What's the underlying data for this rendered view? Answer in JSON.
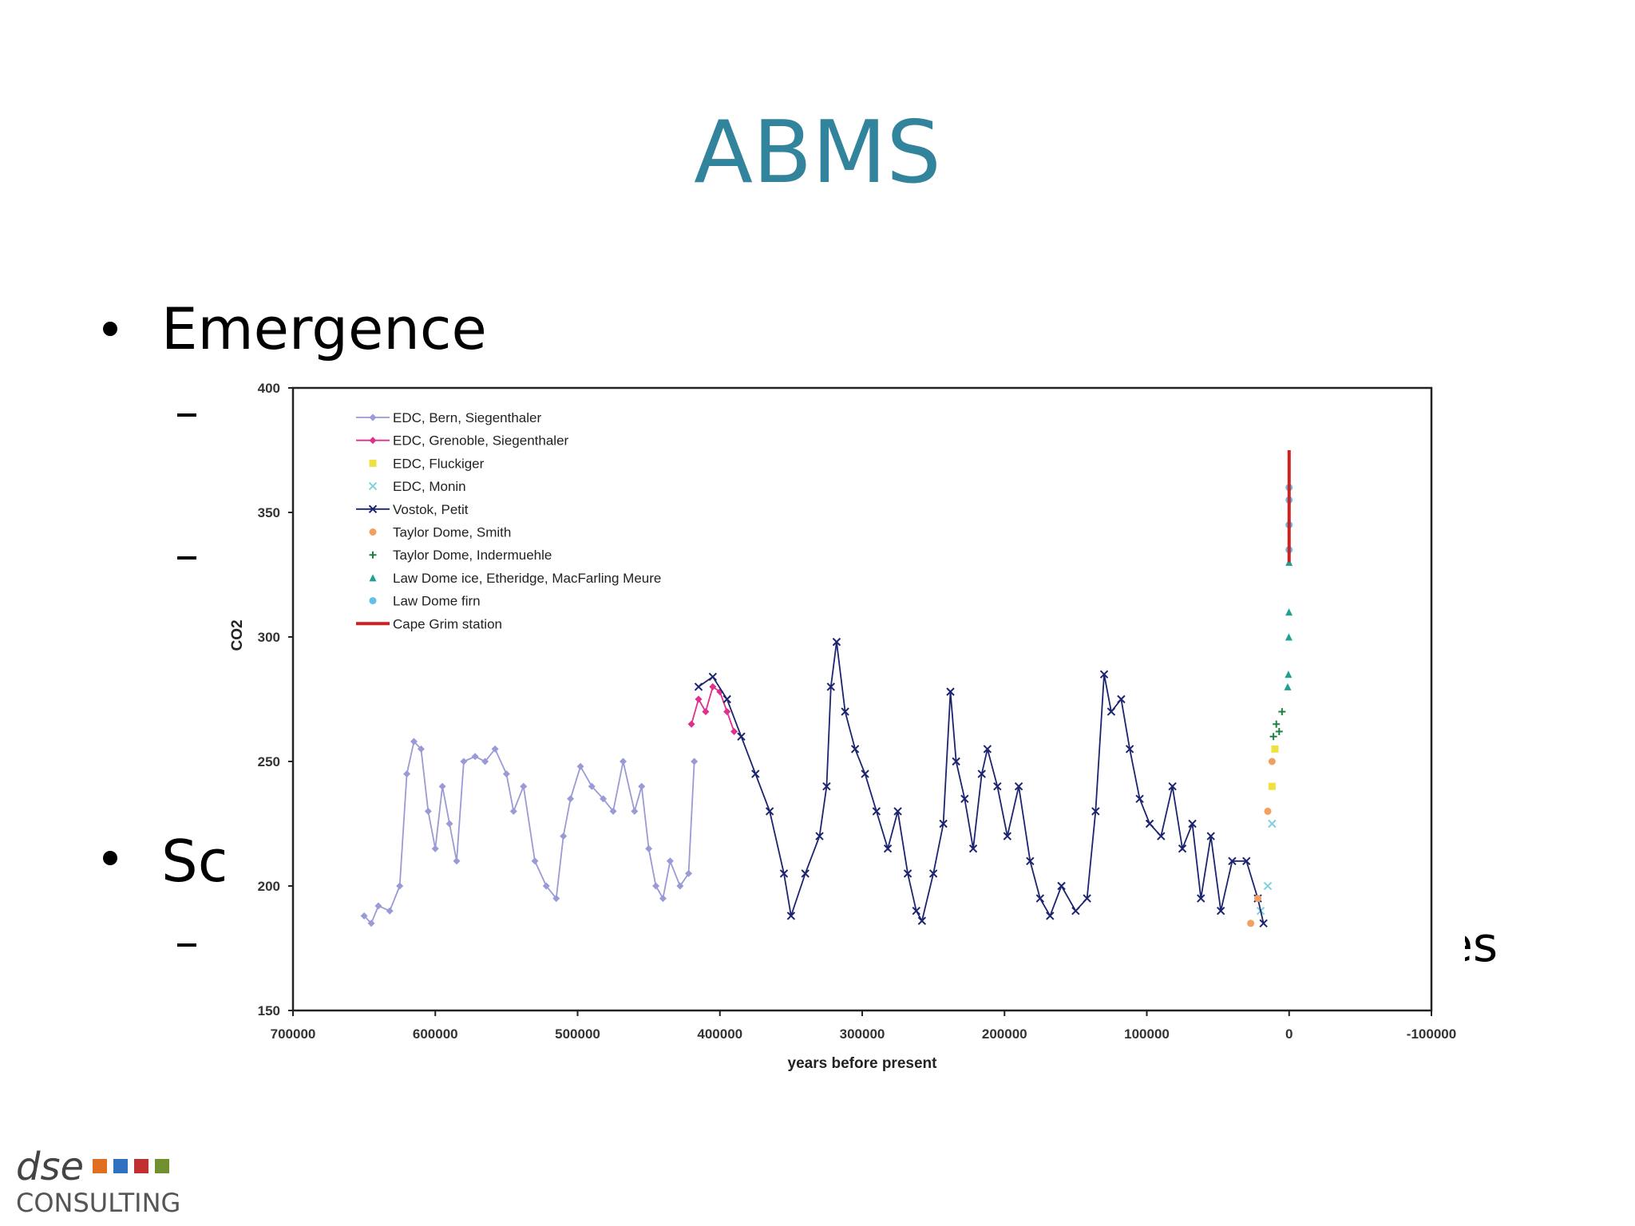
{
  "slide": {
    "title": "ABMS",
    "bullets": [
      "Emergence",
      "Sc"
    ],
    "fragments": [
      "es"
    ]
  },
  "logo": {
    "name": "dse",
    "tagline": "CONSULTING"
  },
  "chart_data": {
    "type": "line",
    "xlabel": "years before present",
    "ylabel": "CO2",
    "xlim": [
      700000,
      -100000
    ],
    "xticks": [
      700000,
      600000,
      500000,
      400000,
      300000,
      200000,
      100000,
      0,
      -100000
    ],
    "ylim": [
      150,
      400
    ],
    "yticks": [
      150,
      200,
      250,
      300,
      350,
      400
    ],
    "series": [
      {
        "name": "EDC, Bern, Siegenthaler",
        "color": "#9a9ad6",
        "line": true,
        "marker": "diamond",
        "x": [
          650000,
          645000,
          640000,
          632000,
          625000,
          620000,
          615000,
          610000,
          605000,
          600000,
          595000,
          590000,
          585000,
          580000,
          572000,
          565000,
          558000,
          550000,
          545000,
          538000,
          530000,
          522000,
          515000,
          510000,
          505000,
          498000,
          490000,
          482000,
          475000,
          468000,
          460000,
          455000,
          450000,
          445000,
          440000,
          435000,
          428000,
          422000,
          418000
        ],
        "values": [
          188,
          185,
          192,
          190,
          200,
          245,
          258,
          255,
          230,
          215,
          240,
          225,
          210,
          250,
          252,
          250,
          255,
          245,
          230,
          240,
          210,
          200,
          195,
          220,
          235,
          248,
          240,
          235,
          230,
          250,
          230,
          240,
          215,
          200,
          195,
          210,
          200,
          205,
          250
        ]
      },
      {
        "name": "EDC, Grenoble, Siegenthaler",
        "color": "#e0308c",
        "line": true,
        "marker": "diamond",
        "x": [
          420000,
          415000,
          410000,
          405000,
          400000,
          395000,
          390000
        ],
        "values": [
          265,
          275,
          270,
          280,
          278,
          270,
          262
        ]
      },
      {
        "name": "EDC, Fluckiger",
        "color": "#f0e040",
        "line": false,
        "marker": "square",
        "x": [
          12000,
          10000
        ],
        "values": [
          240,
          255
        ]
      },
      {
        "name": "EDC, Monin",
        "color": "#80d0e0",
        "line": false,
        "marker": "x",
        "x": [
          20000,
          15000,
          12000
        ],
        "values": [
          190,
          200,
          225
        ]
      },
      {
        "name": "Vostok, Petit",
        "color": "#1c2470",
        "line": true,
        "marker": "x",
        "x": [
          415000,
          405000,
          395000,
          385000,
          375000,
          365000,
          355000,
          350000,
          340000,
          330000,
          325000,
          322000,
          318000,
          312000,
          305000,
          298000,
          290000,
          282000,
          275000,
          268000,
          262000,
          258000,
          250000,
          243000,
          238000,
          234000,
          228000,
          222000,
          216000,
          212000,
          205000,
          198000,
          190000,
          182000,
          175000,
          168000,
          160000,
          150000,
          142000,
          136000,
          130000,
          125000,
          118000,
          112000,
          105000,
          98000,
          90000,
          82000,
          75000,
          68000,
          62000,
          55000,
          48000,
          40000,
          30000,
          22000,
          18000
        ],
        "values": [
          280,
          284,
          275,
          260,
          245,
          230,
          205,
          188,
          205,
          220,
          240,
          280,
          298,
          270,
          255,
          245,
          230,
          215,
          230,
          205,
          190,
          186,
          205,
          225,
          278,
          250,
          235,
          215,
          245,
          255,
          240,
          220,
          240,
          210,
          195,
          188,
          200,
          190,
          195,
          230,
          285,
          270,
          275,
          255,
          235,
          225,
          220,
          240,
          215,
          225,
          195,
          220,
          190,
          210,
          210,
          195,
          185
        ]
      },
      {
        "name": "Taylor Dome, Smith",
        "color": "#f0a060",
        "line": false,
        "marker": "circle",
        "x": [
          27000,
          22000,
          15000,
          12000
        ],
        "values": [
          185,
          195,
          230,
          250
        ]
      },
      {
        "name": "Taylor Dome, Indermuehle",
        "color": "#208040",
        "line": false,
        "marker": "plus",
        "x": [
          11000,
          9000,
          7000,
          5000
        ],
        "values": [
          260,
          265,
          262,
          270
        ]
      },
      {
        "name": "Law Dome ice, Etheridge, MacFarling Meure",
        "color": "#20a090",
        "line": false,
        "marker": "triangle",
        "x": [
          1000,
          500,
          200,
          100,
          50
        ],
        "values": [
          280,
          285,
          300,
          310,
          330
        ]
      },
      {
        "name": "Law Dome firn",
        "color": "#60c0e8",
        "line": false,
        "marker": "circle",
        "x": [
          40,
          20,
          10,
          0
        ],
        "values": [
          335,
          345,
          355,
          360
        ]
      },
      {
        "name": "Cape Grim station",
        "color": "#d02020",
        "line": true,
        "marker": "none",
        "x": [
          5,
          0,
          -20
        ],
        "values": [
          330,
          340,
          375
        ]
      }
    ]
  }
}
